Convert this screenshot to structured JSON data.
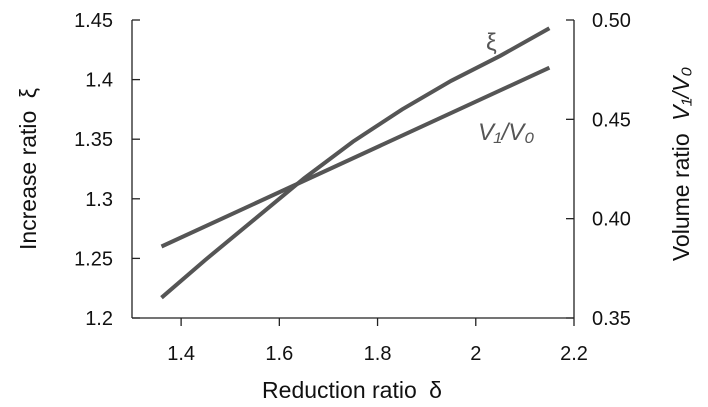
{
  "chart_data": {
    "type": "line",
    "xlabel": "Reduction ratio",
    "xlabel_symbol": "δ",
    "ylabel_left": "Increase ratio",
    "ylabel_left_symbol": "ξ",
    "ylabel_right": "Volume ratio",
    "ylabel_right_symbol": "V₁/V₀",
    "xlim": [
      1.3,
      2.2
    ],
    "ylim_left": [
      1.2,
      1.45
    ],
    "ylim_right": [
      0.35,
      0.5
    ],
    "x_ticks": [
      1.4,
      1.6,
      1.8,
      2.0,
      2.2
    ],
    "x_tick_labels": [
      "1.4",
      "1.6",
      "1.8",
      "2",
      "2.2"
    ],
    "y_left_ticks": [
      1.2,
      1.25,
      1.3,
      1.35,
      1.4,
      1.45
    ],
    "y_left_tick_labels": [
      "1.2",
      "1.25",
      "1.3",
      "1.35",
      "1.4",
      "1.45"
    ],
    "y_right_ticks": [
      0.35,
      0.4,
      0.45,
      0.5
    ],
    "y_right_tick_labels": [
      "0.35",
      "0.40",
      "0.45",
      "0.50"
    ],
    "grid": false,
    "series": [
      {
        "name": "ξ",
        "axis": "left",
        "color": "#555555",
        "x": [
          1.36,
          1.45,
          1.55,
          1.65,
          1.75,
          1.85,
          1.95,
          2.05,
          2.15
        ],
        "y": [
          1.217,
          1.249,
          1.283,
          1.317,
          1.348,
          1.375,
          1.399,
          1.42,
          1.443
        ]
      },
      {
        "name": "V₁/V₀",
        "axis": "right",
        "color": "#555555",
        "x": [
          1.36,
          2.15
        ],
        "y": [
          0.386,
          0.476
        ]
      }
    ]
  }
}
